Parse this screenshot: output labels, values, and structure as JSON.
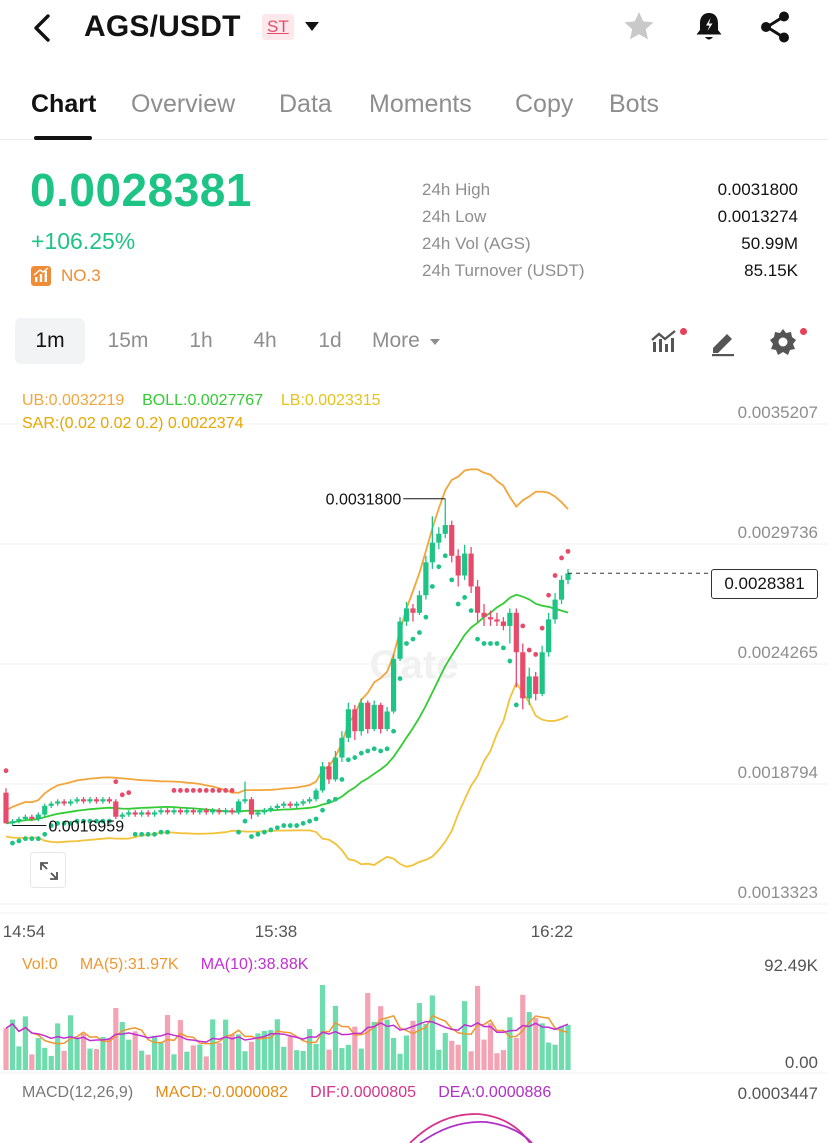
{
  "header": {
    "pair": "AGS/USDT",
    "badge": "ST"
  },
  "tabs": [
    "Chart",
    "Overview",
    "Data",
    "Moments",
    "Copy",
    "Bots"
  ],
  "ticker": {
    "last_price": "0.0028381",
    "change_pct": "+106.25%",
    "rank": "NO.3",
    "stats": [
      {
        "label": "24h High",
        "value": "0.0031800"
      },
      {
        "label": "24h Low",
        "value": "0.0013274"
      },
      {
        "label": "24h Vol (AGS)",
        "value": "50.99M"
      },
      {
        "label": "24h Turnover (USDT)",
        "value": "85.15K"
      }
    ]
  },
  "intervals": [
    "1m",
    "15m",
    "1h",
    "4h",
    "1d"
  ],
  "interval_more": "More",
  "active_interval": "1m",
  "legend": {
    "ub": "UB:0.0032219",
    "boll": "BOLL:0.0027767",
    "lb": "LB:0.0023315",
    "sar": "SAR:(0.02 0.02 0.2) 0.0022374",
    "vol": "Vol:0",
    "ma5": "MA(5):31.97K",
    "ma10": "MA(10):38.88K",
    "macd_name": "MACD(12,26,9)",
    "macd": "MACD:-0.0000082",
    "dif": "DIF:0.0000805",
    "dea": "DEA:0.0000886"
  },
  "colors": {
    "up": "#1ec485",
    "down": "#e84a6c",
    "ub": "#f2a53b",
    "lb": "#f2c23b",
    "boll": "#33cc33",
    "sar_label": "#e6a700",
    "ma5": "#f0962e",
    "ma10": "#c22ed4",
    "dif": "#d6338a",
    "macd": "#e58b12",
    "dea": "#b030c8"
  },
  "watermark": "Gate",
  "chart_data": {
    "type": "candlestick",
    "interval": "1m",
    "price_axis_ticks": [
      "0.0035207",
      "0.0029736",
      "0.0024265",
      "0.0018794",
      "0.0013323"
    ],
    "time_ticks": [
      "14:54",
      "15:38",
      "16:22"
    ],
    "last_price_tag": "0.0028381",
    "high_marker": "0.0031800",
    "low_marker": "0.0016959",
    "volume_axis_ticks": [
      "92.49K",
      "0.00"
    ],
    "macd_axis_tick": "0.0003447",
    "price_range": [
      0.0013323,
      0.0035207
    ],
    "candles": [
      [
        0.00184,
        0.0017,
        0.00186,
        0.0017
      ],
      [
        0.0017,
        0.00171,
        0.00172,
        0.00169
      ],
      [
        0.00171,
        0.00172,
        0.00173,
        0.0017
      ],
      [
        0.00172,
        0.00173,
        0.00174,
        0.00171
      ],
      [
        0.00173,
        0.00172,
        0.00174,
        0.00171
      ],
      [
        0.00172,
        0.00174,
        0.00175,
        0.00171
      ],
      [
        0.00174,
        0.00178,
        0.00179,
        0.00173
      ],
      [
        0.00178,
        0.00179,
        0.0018,
        0.00177
      ],
      [
        0.00179,
        0.0018,
        0.00181,
        0.00178
      ],
      [
        0.0018,
        0.00179,
        0.00181,
        0.00178
      ],
      [
        0.00179,
        0.0018,
        0.00181,
        0.00178
      ],
      [
        0.0018,
        0.00181,
        0.00182,
        0.00179
      ],
      [
        0.00181,
        0.0018,
        0.00182,
        0.00179
      ],
      [
        0.0018,
        0.00181,
        0.00182,
        0.00179
      ],
      [
        0.00181,
        0.0018,
        0.00182,
        0.00179
      ],
      [
        0.0018,
        0.00181,
        0.00182,
        0.00179
      ],
      [
        0.00181,
        0.0018,
        0.00182,
        0.00179
      ],
      [
        0.0018,
        0.00173,
        0.00181,
        0.00172
      ],
      [
        0.00173,
        0.00174,
        0.00175,
        0.00172
      ],
      [
        0.00174,
        0.00175,
        0.00176,
        0.00173
      ],
      [
        0.00175,
        0.00174,
        0.00176,
        0.00173
      ],
      [
        0.00174,
        0.00175,
        0.00176,
        0.00173
      ],
      [
        0.00175,
        0.00174,
        0.00176,
        0.00173
      ],
      [
        0.00174,
        0.00175,
        0.00176,
        0.00173
      ],
      [
        0.00175,
        0.00176,
        0.00177,
        0.00174
      ],
      [
        0.00176,
        0.00175,
        0.00177,
        0.00174
      ],
      [
        0.00175,
        0.00176,
        0.00177,
        0.00174
      ],
      [
        0.00176,
        0.00175,
        0.00177,
        0.00174
      ],
      [
        0.00175,
        0.00176,
        0.00177,
        0.00174
      ],
      [
        0.00176,
        0.00175,
        0.00177,
        0.00174
      ],
      [
        0.00175,
        0.00176,
        0.00177,
        0.00174
      ],
      [
        0.00176,
        0.00175,
        0.00177,
        0.00174
      ],
      [
        0.00175,
        0.00176,
        0.00177,
        0.00174
      ],
      [
        0.00176,
        0.00175,
        0.00177,
        0.00174
      ],
      [
        0.00175,
        0.00176,
        0.00177,
        0.00174
      ],
      [
        0.00176,
        0.00175,
        0.00177,
        0.00174
      ],
      [
        0.00175,
        0.0018,
        0.00181,
        0.00174
      ],
      [
        0.0018,
        0.00181,
        0.00189,
        0.00179
      ],
      [
        0.00181,
        0.00174,
        0.00182,
        0.00172
      ],
      [
        0.00174,
        0.00175,
        0.00176,
        0.00173
      ],
      [
        0.00175,
        0.00176,
        0.00177,
        0.00174
      ],
      [
        0.00176,
        0.00177,
        0.00178,
        0.00175
      ],
      [
        0.00177,
        0.00178,
        0.00179,
        0.00176
      ],
      [
        0.00178,
        0.00179,
        0.0018,
        0.00177
      ],
      [
        0.00179,
        0.00178,
        0.0018,
        0.00177
      ],
      [
        0.00178,
        0.00179,
        0.0018,
        0.00177
      ],
      [
        0.00179,
        0.0018,
        0.00181,
        0.00178
      ],
      [
        0.0018,
        0.00181,
        0.00182,
        0.00179
      ],
      [
        0.00181,
        0.00185,
        0.00186,
        0.0018
      ],
      [
        0.00185,
        0.00196,
        0.00198,
        0.00184
      ],
      [
        0.00196,
        0.0019,
        0.00198,
        0.00188
      ],
      [
        0.0019,
        0.002,
        0.00203,
        0.00189
      ],
      [
        0.002,
        0.00209,
        0.00212,
        0.00198
      ],
      [
        0.00209,
        0.00222,
        0.00225,
        0.00207
      ],
      [
        0.00222,
        0.00212,
        0.00224,
        0.00208
      ],
      [
        0.00212,
        0.00225,
        0.00227,
        0.0021
      ],
      [
        0.00225,
        0.00213,
        0.00226,
        0.00211
      ],
      [
        0.00213,
        0.00224,
        0.00226,
        0.00212
      ],
      [
        0.00224,
        0.00213,
        0.00225,
        0.00211
      ],
      [
        0.00213,
        0.00221,
        0.00223,
        0.00212
      ],
      [
        0.00221,
        0.00245,
        0.00247,
        0.0022
      ],
      [
        0.00245,
        0.00262,
        0.00264,
        0.00244
      ],
      [
        0.00262,
        0.00268,
        0.00271,
        0.0026
      ],
      [
        0.00268,
        0.00266,
        0.0027,
        0.00262
      ],
      [
        0.00266,
        0.00274,
        0.00276,
        0.00265
      ],
      [
        0.00274,
        0.00289,
        0.00292,
        0.00272
      ],
      [
        0.00289,
        0.00298,
        0.0031,
        0.00286
      ],
      [
        0.00298,
        0.00302,
        0.00305,
        0.00295
      ],
      [
        0.00302,
        0.00306,
        0.00318,
        0.003
      ],
      [
        0.00306,
        0.00292,
        0.00308,
        0.00289
      ],
      [
        0.00292,
        0.00283,
        0.00295,
        0.00278
      ],
      [
        0.00283,
        0.00293,
        0.00297,
        0.00281
      ],
      [
        0.00293,
        0.00278,
        0.00296,
        0.00275
      ],
      [
        0.00278,
        0.00266,
        0.00281,
        0.00262
      ],
      [
        0.00266,
        0.00264,
        0.0027,
        0.0026
      ],
      [
        0.00264,
        0.00263,
        0.00267,
        0.0026
      ],
      [
        0.00263,
        0.00262,
        0.00266,
        0.0026
      ],
      [
        0.00262,
        0.0026,
        0.00264,
        0.00258
      ],
      [
        0.0026,
        0.00266,
        0.00268,
        0.00252
      ],
      [
        0.00266,
        0.00248,
        0.00268,
        0.00232
      ],
      [
        0.00248,
        0.00227,
        0.00252,
        0.00222
      ],
      [
        0.00227,
        0.00237,
        0.00241,
        0.00224
      ],
      [
        0.00237,
        0.00229,
        0.00239,
        0.00226
      ],
      [
        0.00229,
        0.00248,
        0.00251,
        0.00228
      ],
      [
        0.00248,
        0.00263,
        0.00266,
        0.00246
      ],
      [
        0.00263,
        0.00272,
        0.00275,
        0.00261
      ],
      [
        0.00272,
        0.00281,
        0.00283,
        0.0027
      ],
      [
        0.00281,
        0.00284,
        0.00286,
        0.00279
      ]
    ],
    "volume_max": 92490
  }
}
